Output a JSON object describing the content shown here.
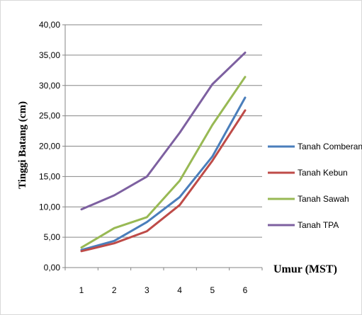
{
  "chart_data": {
    "type": "line",
    "title": "",
    "xlabel": "Umur (MST)",
    "ylabel": "Tinggi Batang (cm)",
    "categories": [
      "1",
      "2",
      "3",
      "4",
      "5",
      "6"
    ],
    "ylim": [
      0,
      40
    ],
    "y_ticks": [
      "0,00",
      "5,00",
      "10,00",
      "15,00",
      "20,00",
      "25,00",
      "30,00",
      "35,00",
      "40,00"
    ],
    "grid": "horizontal",
    "legend_position": "right",
    "series": [
      {
        "name": "Tanah Comberan",
        "color": "#4a7ebb",
        "values": [
          2.9,
          4.4,
          7.5,
          11.6,
          18.3,
          28.0
        ]
      },
      {
        "name": "Tanah Kebun",
        "color": "#be4b48",
        "values": [
          2.7,
          4.0,
          6.0,
          10.3,
          17.6,
          25.9
        ]
      },
      {
        "name": "Tanah Sawah",
        "color": "#98b954",
        "values": [
          3.3,
          6.5,
          8.3,
          14.3,
          23.5,
          31.4
        ]
      },
      {
        "name": "Tanah TPA",
        "color": "#7d60a0",
        "values": [
          9.6,
          11.9,
          15.0,
          22.2,
          30.2,
          35.4
        ]
      }
    ]
  }
}
